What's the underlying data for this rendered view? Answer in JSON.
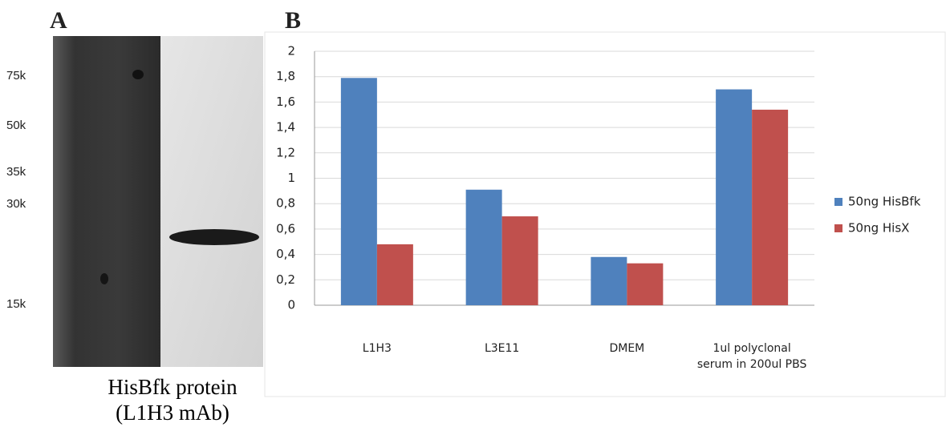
{
  "panel_a": {
    "label": "A",
    "markers": [
      "75k",
      "50k",
      "35k",
      "30k",
      "15k"
    ],
    "caption": [
      "HisBfk  protein",
      "(L1H3 mAb)"
    ]
  },
  "panel_b": {
    "label": "B"
  },
  "chart_data": {
    "type": "bar",
    "categories": [
      "L1H3",
      "L3E11",
      "DMEM",
      "1ul polyclonal serum in 200ul PBS"
    ],
    "series": [
      {
        "name": "50ng HisBfk",
        "color": "#4f81bd",
        "values": [
          1.79,
          0.91,
          0.38,
          1.7
        ]
      },
      {
        "name": "50ng HisX",
        "color": "#c0504d",
        "values": [
          0.48,
          0.7,
          0.33,
          1.54
        ]
      }
    ],
    "ylim": [
      0,
      2
    ],
    "yticks": [
      0,
      {
        "value": 0.2,
        "label": "0,2"
      },
      {
        "value": 0.4,
        "label": "0,4"
      },
      {
        "value": 0.6,
        "label": "0,6"
      },
      {
        "value": 0.8,
        "label": "0,8"
      },
      1,
      {
        "value": 1.2,
        "label": "1,2"
      },
      {
        "value": 1.4,
        "label": "1,4"
      },
      {
        "value": 1.6,
        "label": "1,6"
      },
      {
        "value": 1.8,
        "label": "1,8"
      },
      2
    ],
    "grid": true,
    "legend": "right"
  }
}
